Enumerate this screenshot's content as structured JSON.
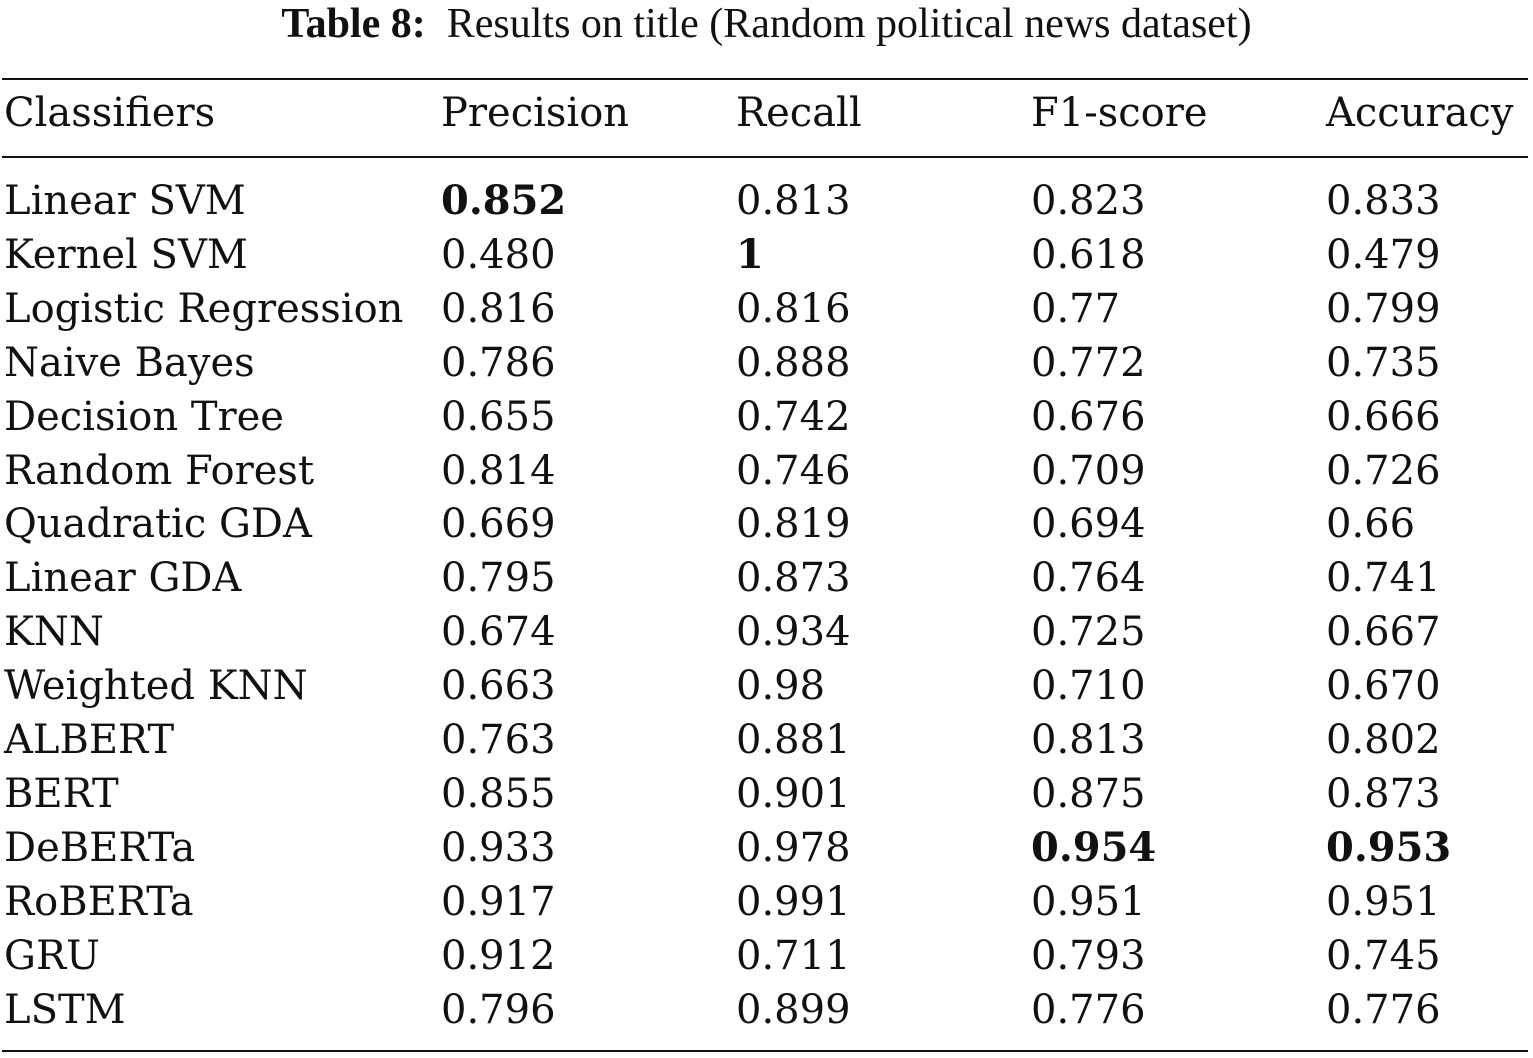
{
  "caption": {
    "label": "Table 8:",
    "text": "Results on title (Random political news dataset)"
  },
  "table": {
    "headers": [
      "Classifiers",
      "Precision",
      "Recall",
      "F1-score",
      "Accuracy"
    ],
    "rows": [
      {
        "cells": [
          "Linear SVM",
          "0.852",
          "0.813",
          "0.823",
          "0.833"
        ],
        "bold": [
          1
        ]
      },
      {
        "cells": [
          "Kernel SVM",
          "0.480",
          "1",
          "0.618",
          "0.479"
        ],
        "bold": [
          2
        ]
      },
      {
        "cells": [
          "Logistic Regression",
          "0.816",
          "0.816",
          "0.77",
          "0.799"
        ],
        "bold": []
      },
      {
        "cells": [
          "Naive Bayes",
          "0.786",
          "0.888",
          "0.772",
          "0.735"
        ],
        "bold": []
      },
      {
        "cells": [
          "Decision Tree",
          "0.655",
          "0.742",
          "0.676",
          "0.666"
        ],
        "bold": []
      },
      {
        "cells": [
          "Random Forest",
          "0.814",
          "0.746",
          "0.709",
          "0.726"
        ],
        "bold": []
      },
      {
        "cells": [
          "Quadratic GDA",
          "0.669",
          "0.819",
          "0.694",
          "0.66"
        ],
        "bold": []
      },
      {
        "cells": [
          "Linear GDA",
          "0.795",
          "0.873",
          "0.764",
          "0.741"
        ],
        "bold": []
      },
      {
        "cells": [
          "KNN",
          "0.674",
          "0.934",
          "0.725",
          "0.667"
        ],
        "bold": []
      },
      {
        "cells": [
          "Weighted KNN",
          "0.663",
          "0.98",
          "0.710",
          "0.670"
        ],
        "bold": []
      },
      {
        "cells": [
          "ALBERT",
          "0.763",
          "0.881",
          "0.813",
          "0.802"
        ],
        "bold": []
      },
      {
        "cells": [
          "BERT",
          "0.855",
          "0.901",
          "0.875",
          "0.873"
        ],
        "bold": []
      },
      {
        "cells": [
          "DeBERTa",
          "0.933",
          "0.978",
          "0.954",
          "0.953"
        ],
        "bold": [
          3,
          4
        ]
      },
      {
        "cells": [
          "RoBERTa",
          "0.917",
          "0.991",
          "0.951",
          "0.951"
        ],
        "bold": []
      },
      {
        "cells": [
          "GRU",
          "0.912",
          "0.711",
          "0.793",
          "0.745"
        ],
        "bold": []
      },
      {
        "cells": [
          "LSTM",
          "0.796",
          "0.899",
          "0.776",
          "0.776"
        ],
        "bold": []
      }
    ]
  }
}
